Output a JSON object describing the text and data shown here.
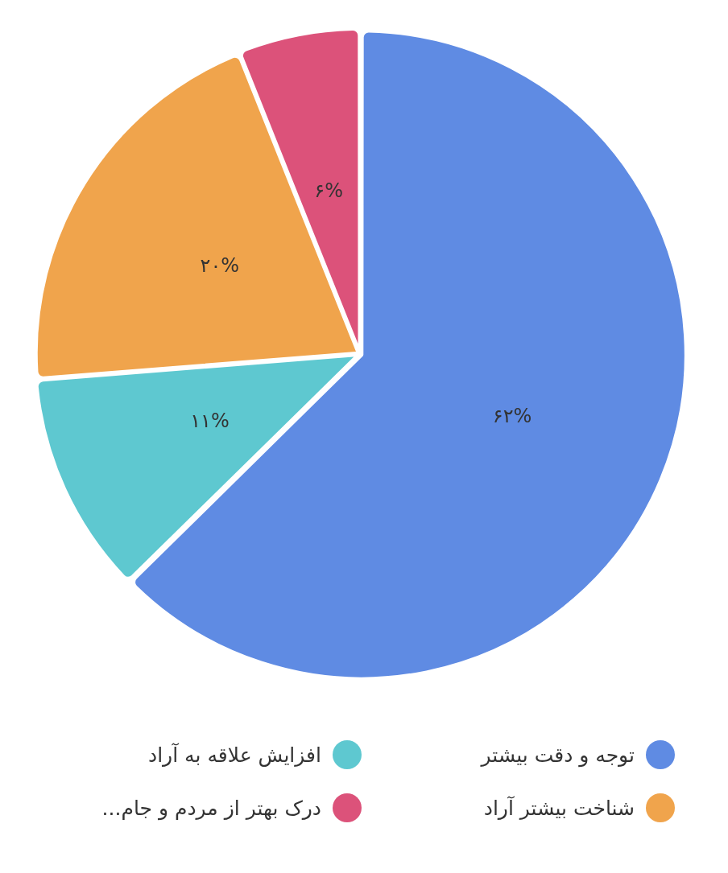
{
  "chart_data": {
    "type": "pie",
    "categories": [
      "توجه و دقت بیشتر",
      "افزایش علاقه به آراد",
      "شناخت بیشتر آراد",
      "درک بهتر از مردم و جام..."
    ],
    "values": [
      62,
      11,
      20,
      6
    ],
    "colors": [
      "#5f8be3",
      "#5ec8d0",
      "#f0a44c",
      "#dc527a"
    ],
    "value_labels": [
      "۶۲%",
      "۱۱%",
      "۲۰%",
      "۶%"
    ],
    "legend": "bottom"
  }
}
